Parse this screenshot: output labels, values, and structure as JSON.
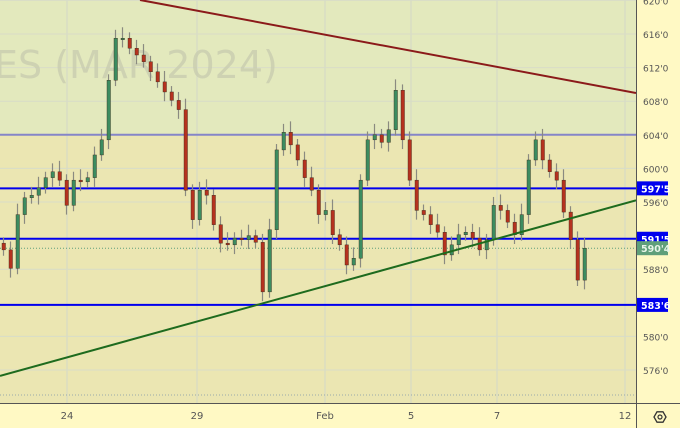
{
  "watermark": "ES (MAR 2024)",
  "settings_icon": "gear-icon",
  "colors": {
    "upper_zone": "#e3e9bd",
    "lower_zone": "#ebe6b2",
    "axis_bg": "#fff9c4",
    "up_candle": "#3c8c60",
    "down_candle": "#b5321f",
    "resistance_trendline": "#8b1a1a",
    "support_trendline": "#1e6b1e",
    "level_line": "#0000ee",
    "zone_border": "#8585c8",
    "current_price": "#5f9f7a"
  },
  "chart_data": {
    "type": "candlestick",
    "title": "",
    "ylim": [
      575.5,
      620
    ],
    "grid": true,
    "x_tick_labels": [
      "24",
      "29",
      "Feb",
      "5",
      "7",
      "12"
    ],
    "y_tick_labels": [
      "620'0",
      "616'0",
      "612'0",
      "608'0",
      "604'0",
      "600'0",
      "596'0",
      "588'0",
      "580'0",
      "576'0"
    ],
    "y_ticks": [
      620,
      616,
      612,
      608,
      604,
      600,
      596,
      588,
      580,
      576
    ],
    "closes": [
      590.3,
      588.1,
      594.5,
      596.5,
      596.8,
      597.7,
      598.9,
      599.6,
      598.6,
      595.6,
      598.6,
      598.4,
      598.9,
      601.6,
      603.4,
      610.5,
      615.5,
      615.5,
      614.3,
      613.5,
      612.7,
      611.5,
      610.3,
      609.1,
      608.1,
      607.0,
      597.4,
      593.9,
      597.4,
      596.8,
      593.3,
      591.1,
      590.9,
      591.7,
      591.5,
      592.0,
      591.2,
      585.3,
      592.7,
      602.2,
      604.3,
      602.8,
      601.0,
      598.9,
      597.4,
      594.5,
      595.0,
      592.1,
      590.9,
      588.5,
      589.3,
      598.6,
      603.4,
      604.0,
      603.1,
      604.6,
      609.3,
      603.4,
      598.6,
      595.0,
      594.5,
      593.3,
      592.4,
      589.7,
      590.9,
      592.1,
      592.4,
      591.7,
      590.3,
      591.5,
      595.6,
      595.0,
      593.6,
      592.1,
      594.5,
      601.0,
      603.4,
      601.0,
      599.6,
      598.6,
      594.8,
      591.5,
      586.7,
      590.5
    ],
    "horizontal_levels": [
      {
        "price": 604.0,
        "style": "zone-border"
      },
      {
        "price": 597.625,
        "label": "597'5"
      },
      {
        "price": 591.625,
        "label": "591'5"
      },
      {
        "price": 583.75,
        "label": "583'6"
      }
    ],
    "current_price": {
      "price": 590.5,
      "label": "590'4"
    },
    "trendlines": [
      {
        "name": "",
        "color": "resistance",
        "from_price": 620.05,
        "to_price": 608.98
      },
      {
        "name": "",
        "color": "support",
        "from_price": 575.3,
        "to_price": 596.2
      }
    ]
  }
}
